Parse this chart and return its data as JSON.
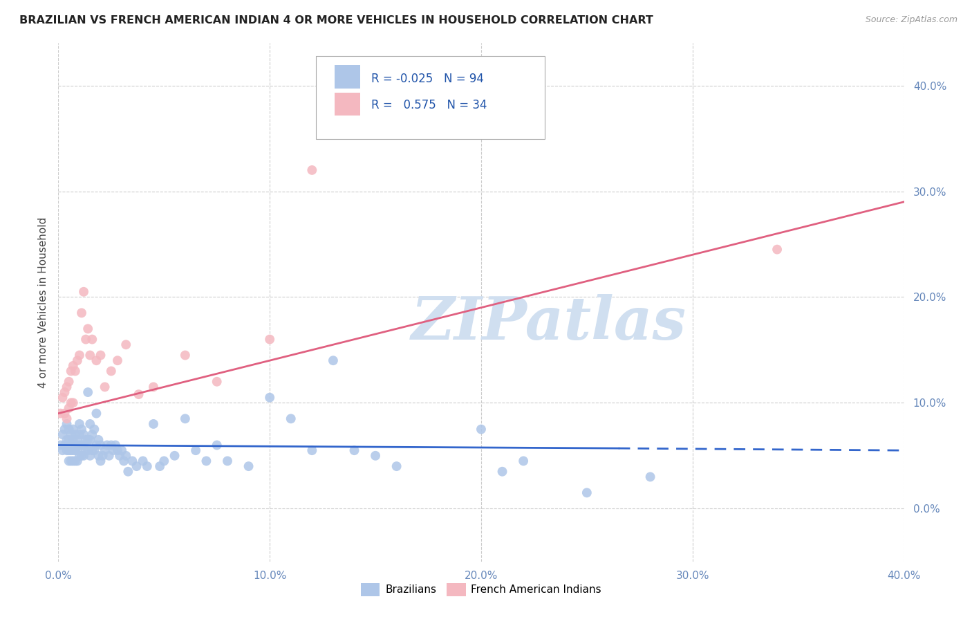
{
  "title": "BRAZILIAN VS FRENCH AMERICAN INDIAN 4 OR MORE VEHICLES IN HOUSEHOLD CORRELATION CHART",
  "source": "Source: ZipAtlas.com",
  "ylabel": "4 or more Vehicles in Household",
  "xlim": [
    0.0,
    0.4
  ],
  "ylim": [
    -0.05,
    0.44
  ],
  "xtick_vals": [
    0.0,
    0.1,
    0.2,
    0.3,
    0.4
  ],
  "ytick_vals": [
    0.0,
    0.1,
    0.2,
    0.3,
    0.4
  ],
  "brazilian_color": "#aec6e8",
  "french_color": "#f4b8c0",
  "trendline_blue_color": "#3366cc",
  "trendline_pink_color": "#e06080",
  "legend_R_brazilian": "-0.025",
  "legend_N_brazilian": "94",
  "legend_R_french": "0.575",
  "legend_N_french": "34",
  "watermark": "ZIPatlas",
  "watermark_color": "#d0dff0",
  "background_color": "#ffffff",
  "grid_color": "#cccccc",
  "brazilian_points_x": [
    0.001,
    0.002,
    0.002,
    0.003,
    0.003,
    0.004,
    0.004,
    0.004,
    0.005,
    0.005,
    0.005,
    0.005,
    0.006,
    0.006,
    0.006,
    0.006,
    0.007,
    0.007,
    0.007,
    0.007,
    0.008,
    0.008,
    0.008,
    0.008,
    0.009,
    0.009,
    0.009,
    0.01,
    0.01,
    0.01,
    0.01,
    0.011,
    0.011,
    0.011,
    0.012,
    0.012,
    0.012,
    0.013,
    0.013,
    0.014,
    0.014,
    0.014,
    0.015,
    0.015,
    0.015,
    0.016,
    0.016,
    0.017,
    0.017,
    0.018,
    0.018,
    0.019,
    0.019,
    0.02,
    0.02,
    0.021,
    0.022,
    0.023,
    0.024,
    0.025,
    0.026,
    0.027,
    0.028,
    0.029,
    0.03,
    0.031,
    0.032,
    0.033,
    0.035,
    0.037,
    0.04,
    0.042,
    0.045,
    0.048,
    0.05,
    0.055,
    0.06,
    0.065,
    0.07,
    0.075,
    0.08,
    0.09,
    0.1,
    0.11,
    0.12,
    0.13,
    0.14,
    0.15,
    0.16,
    0.2,
    0.21,
    0.22,
    0.25,
    0.28
  ],
  "brazilian_points_y": [
    0.06,
    0.055,
    0.07,
    0.06,
    0.075,
    0.055,
    0.065,
    0.08,
    0.045,
    0.055,
    0.065,
    0.075,
    0.045,
    0.055,
    0.06,
    0.07,
    0.045,
    0.055,
    0.065,
    0.075,
    0.045,
    0.055,
    0.06,
    0.07,
    0.045,
    0.055,
    0.065,
    0.05,
    0.06,
    0.07,
    0.08,
    0.05,
    0.06,
    0.075,
    0.05,
    0.06,
    0.07,
    0.055,
    0.065,
    0.055,
    0.065,
    0.11,
    0.05,
    0.065,
    0.08,
    0.055,
    0.07,
    0.055,
    0.075,
    0.06,
    0.09,
    0.05,
    0.065,
    0.045,
    0.06,
    0.05,
    0.055,
    0.06,
    0.05,
    0.06,
    0.055,
    0.06,
    0.055,
    0.05,
    0.055,
    0.045,
    0.05,
    0.035,
    0.045,
    0.04,
    0.045,
    0.04,
    0.08,
    0.04,
    0.045,
    0.05,
    0.085,
    0.055,
    0.045,
    0.06,
    0.045,
    0.04,
    0.105,
    0.085,
    0.055,
    0.14,
    0.055,
    0.05,
    0.04,
    0.075,
    0.035,
    0.045,
    0.015,
    0.03
  ],
  "french_points_x": [
    0.001,
    0.002,
    0.003,
    0.003,
    0.004,
    0.004,
    0.005,
    0.005,
    0.006,
    0.006,
    0.007,
    0.007,
    0.008,
    0.009,
    0.01,
    0.011,
    0.012,
    0.013,
    0.014,
    0.015,
    0.016,
    0.018,
    0.02,
    0.022,
    0.025,
    0.028,
    0.032,
    0.038,
    0.045,
    0.06,
    0.075,
    0.1,
    0.12,
    0.34
  ],
  "french_points_y": [
    0.09,
    0.105,
    0.09,
    0.11,
    0.085,
    0.115,
    0.095,
    0.12,
    0.1,
    0.13,
    0.1,
    0.135,
    0.13,
    0.14,
    0.145,
    0.185,
    0.205,
    0.16,
    0.17,
    0.145,
    0.16,
    0.14,
    0.145,
    0.115,
    0.13,
    0.14,
    0.155,
    0.108,
    0.115,
    0.145,
    0.12,
    0.16,
    0.32,
    0.245
  ],
  "trendline_blue_x0": 0.0,
  "trendline_blue_x1": 0.265,
  "trendline_blue_y0": 0.06,
  "trendline_blue_y1": 0.057,
  "trendline_blue_dash_x0": 0.265,
  "trendline_blue_dash_x1": 0.4,
  "trendline_blue_dash_y0": 0.057,
  "trendline_blue_dash_y1": 0.055,
  "trendline_pink_x0": 0.0,
  "trendline_pink_x1": 0.4,
  "trendline_pink_y0": 0.09,
  "trendline_pink_y1": 0.29
}
